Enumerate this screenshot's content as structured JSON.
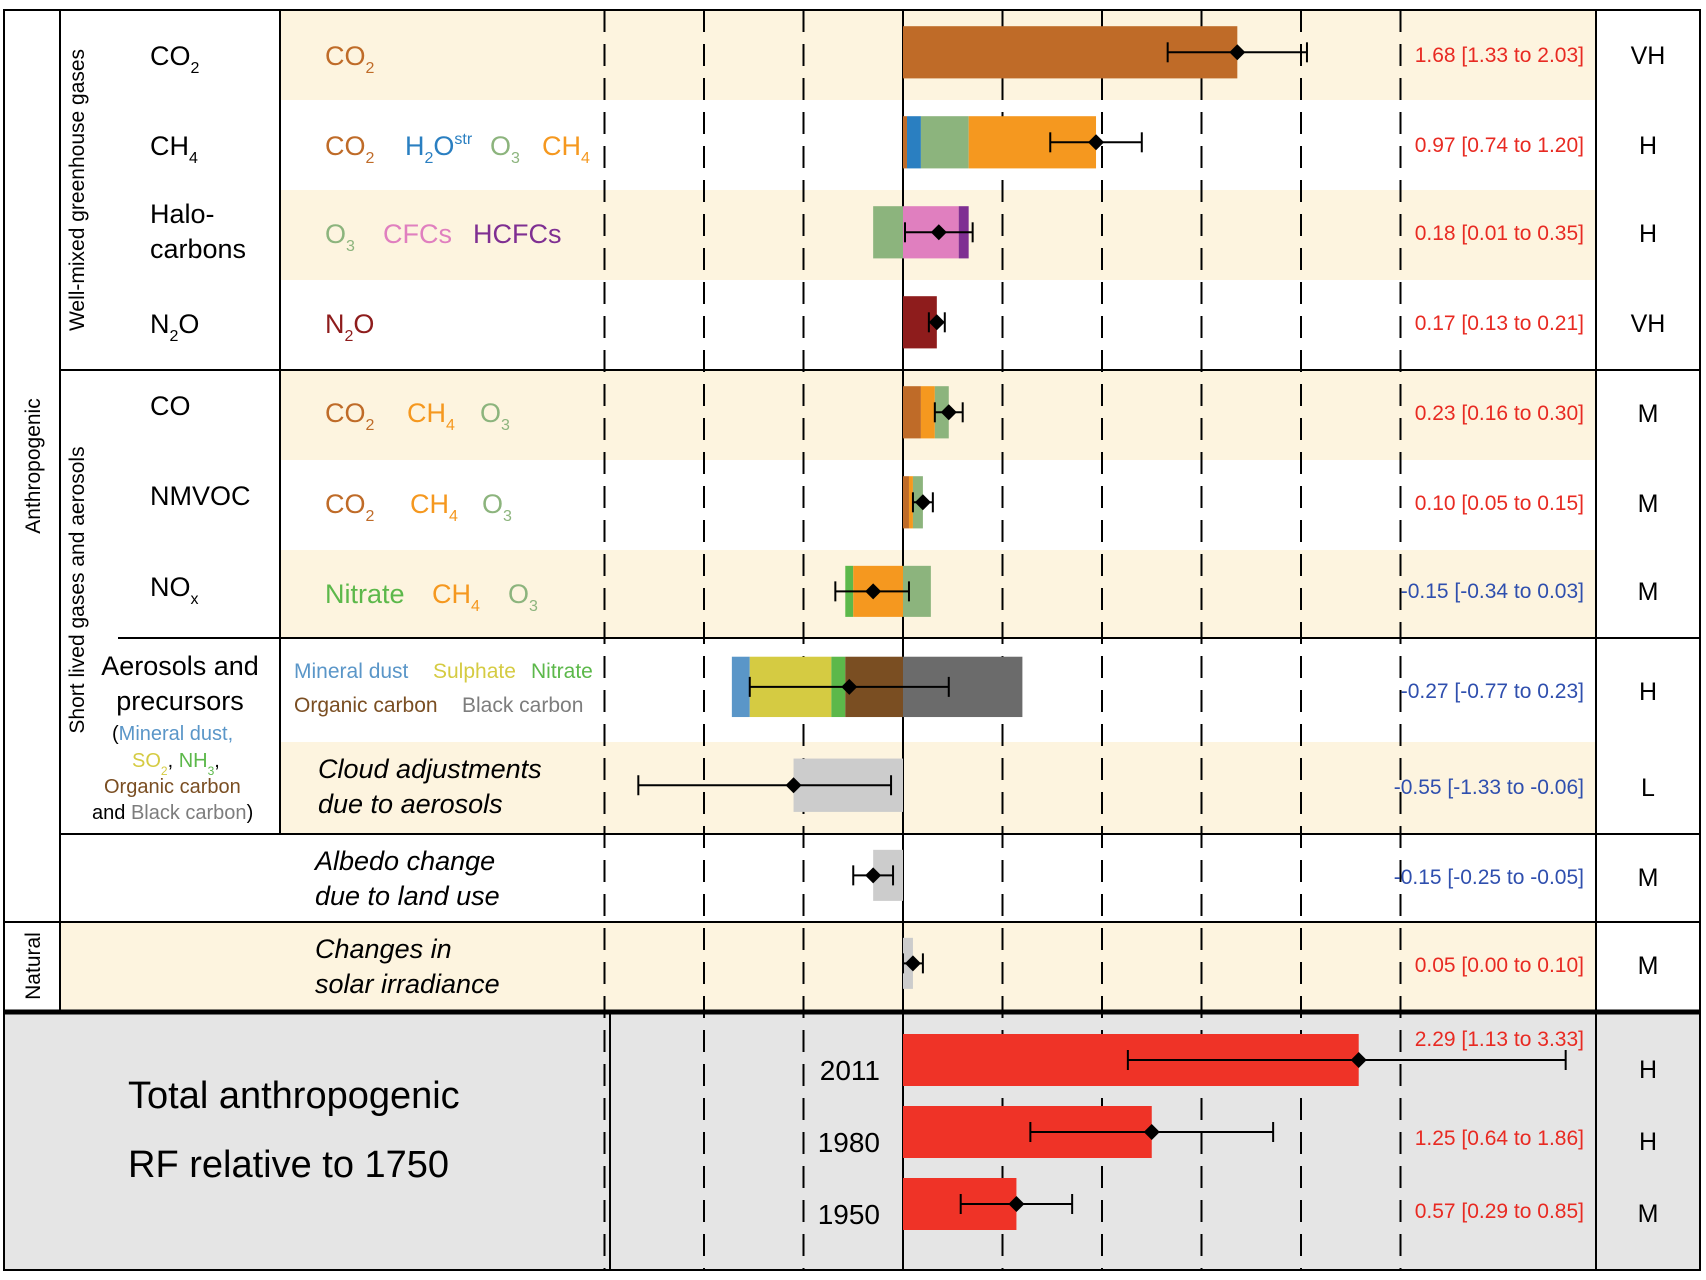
{
  "chart_data": {
    "type": "bar",
    "orientation": "horizontal",
    "xlim": [
      -1.5,
      2.75
    ],
    "grid": "dashed vertical lines every 0.5",
    "colors": {
      "CO2": "#bf6b28",
      "H2Ostr": "#2a7fc1",
      "O3": "#8cb47d",
      "CH4": "#f5981f",
      "CFCs": "#e07fbf",
      "HCFCs": "#7f2f92",
      "N2O": "#8e1c1c",
      "Nitrate": "#5cb84a",
      "MineralDust": "#5a96c8",
      "Sulphate": "#d5cb42",
      "OrganicCarbon": "#7a4e22",
      "BlackCarbon": "#6b6b6b",
      "Adjustment": "#cccccc",
      "Total": "#ef3327",
      "rowShade": "#fdf4df",
      "totalShade": "#e5e5e5",
      "positive": "#e82a22",
      "negative": "#2f4fae"
    },
    "groups": [
      {
        "label": "Anthropogenic"
      },
      {
        "label": "Well-mixed greenhouse gases"
      },
      {
        "label": "Short lived gases and aerosols"
      },
      {
        "label": "Natural"
      }
    ],
    "rows": [
      {
        "emitted": [
          "CO",
          "2"
        ],
        "value": 1.68,
        "lo": 1.33,
        "hi": 2.03,
        "value_text": "1.68 [1.33 to 2.03]",
        "confidence": "VH",
        "components": [
          {
            "name": "CO₂",
            "key": "CO2",
            "sub": "2",
            "base": "CO",
            "from": 0,
            "to": 1.68
          }
        ]
      },
      {
        "emitted": [
          "CH",
          "4"
        ],
        "value": 0.97,
        "lo": 0.74,
        "hi": 1.2,
        "value_text": "0.97 [0.74 to 1.20]",
        "confidence": "H",
        "components": [
          {
            "name": "CO₂",
            "key": "CO2",
            "base": "CO",
            "sub": "2",
            "from": 0,
            "to": 0.02
          },
          {
            "name": "H₂Oˢᵗʳ",
            "key": "H2Ostr",
            "base": "H",
            "sub": "2",
            "tail": "O",
            "sup": "str",
            "from": 0.02,
            "to": 0.09
          },
          {
            "name": "O₃",
            "key": "O3",
            "base": "O",
            "sub": "3",
            "from": 0.09,
            "to": 0.33
          },
          {
            "name": "CH₄",
            "key": "CH4",
            "base": "CH",
            "sub": "4",
            "from": 0.33,
            "to": 0.97
          }
        ]
      },
      {
        "emitted": [
          "Halo-",
          "carbons"
        ],
        "value": 0.18,
        "lo": 0.01,
        "hi": 0.35,
        "value_text": "0.18 [0.01 to 0.35]",
        "confidence": "H",
        "components": [
          {
            "name": "O₃",
            "key": "O3",
            "base": "O",
            "sub": "3",
            "from": -0.15,
            "to": 0
          },
          {
            "name": "CFCs",
            "key": "CFCs",
            "base": "CFCs",
            "from": 0,
            "to": 0.28
          },
          {
            "name": "HCFCs",
            "key": "HCFCs",
            "base": "HCFCs",
            "from": 0.28,
            "to": 0.33
          }
        ]
      },
      {
        "emitted": [
          "N",
          "2",
          "O"
        ],
        "value": 0.17,
        "lo": 0.13,
        "hi": 0.21,
        "value_text": "0.17 [0.13 to 0.21]",
        "confidence": "VH",
        "components": [
          {
            "name": "N₂O",
            "key": "N2O",
            "base": "N",
            "sub": "2",
            "tail": "O",
            "from": 0,
            "to": 0.17
          }
        ]
      },
      {
        "emitted": [
          "CO"
        ],
        "value": 0.23,
        "lo": 0.16,
        "hi": 0.3,
        "value_text": "0.23 [0.16 to 0.30]",
        "confidence": "M",
        "components": [
          {
            "name": "CO₂",
            "key": "CO2",
            "base": "CO",
            "sub": "2",
            "from": 0,
            "to": 0.09
          },
          {
            "name": "CH₄",
            "key": "CH4",
            "base": "CH",
            "sub": "4",
            "from": 0.09,
            "to": 0.16
          },
          {
            "name": "O₃",
            "key": "O3",
            "base": "O",
            "sub": "3",
            "from": 0.16,
            "to": 0.23
          }
        ]
      },
      {
        "emitted": [
          "NMVOC"
        ],
        "value": 0.1,
        "lo": 0.05,
        "hi": 0.15,
        "value_text": "0.10 [0.05 to 0.15]",
        "confidence": "M",
        "components": [
          {
            "name": "CO₂",
            "key": "CO2",
            "base": "CO",
            "sub": "2",
            "from": 0,
            "to": 0.03
          },
          {
            "name": "CH₄",
            "key": "CH4",
            "base": "CH",
            "sub": "4",
            "from": 0.03,
            "to": 0.05
          },
          {
            "name": "O₃",
            "key": "O3",
            "base": "O",
            "sub": "3",
            "from": 0.05,
            "to": 0.1
          }
        ]
      },
      {
        "emitted": [
          "NO",
          "x"
        ],
        "value": -0.15,
        "lo": -0.34,
        "hi": 0.03,
        "value_text": "-0.15 [-0.34 to 0.03]",
        "confidence": "M",
        "components": [
          {
            "name": "Nitrate",
            "key": "Nitrate",
            "base": "Nitrate",
            "from": -0.29,
            "to": -0.25
          },
          {
            "name": "CH₄",
            "key": "CH4",
            "base": "CH",
            "sub": "4",
            "from": -0.25,
            "to": 0
          },
          {
            "name": "O₃",
            "key": "O3",
            "base": "O",
            "sub": "3",
            "from": 0,
            "to": 0.14
          }
        ]
      },
      {
        "emitted": [
          "Aerosols and",
          "precursors"
        ],
        "value": -0.27,
        "lo": -0.77,
        "hi": 0.23,
        "value_text": "-0.27 [-0.77 to 0.23]",
        "confidence": "H",
        "components": [
          {
            "name": "Mineral dust",
            "key": "MineralDust",
            "from": -0.86,
            "to": -0.77
          },
          {
            "name": "Sulphate",
            "key": "Sulphate",
            "from": -0.77,
            "to": -0.36
          },
          {
            "name": "Nitrate",
            "key": "Nitrate",
            "from": -0.36,
            "to": -0.29
          },
          {
            "name": "Organic carbon",
            "key": "OrganicCarbon",
            "from": -0.29,
            "to": 0
          },
          {
            "name": "Black carbon",
            "key": "BlackCarbon",
            "from": 0,
            "to": 0.6
          }
        ]
      },
      {
        "emitted": [],
        "label": [
          "Cloud adjustments",
          "due to aerosols"
        ],
        "value": -0.55,
        "lo": -1.33,
        "hi": -0.06,
        "value_text": "-0.55 [-1.33 to -0.06]",
        "confidence": "L",
        "components": [
          {
            "name": "Cloud adjustments due to aerosols",
            "key": "Adjustment",
            "from": -0.55,
            "to": 0
          }
        ]
      },
      {
        "emitted": [],
        "label": [
          "Albedo change",
          "due to land use"
        ],
        "value": -0.15,
        "lo": -0.25,
        "hi": -0.05,
        "value_text": "-0.15 [-0.25 to -0.05]",
        "confidence": "M",
        "components": [
          {
            "name": "Albedo change due to land use",
            "key": "Adjustment",
            "from": -0.15,
            "to": 0
          }
        ]
      },
      {
        "emitted": [],
        "label": [
          "Changes in",
          "solar irradiance"
        ],
        "value": 0.05,
        "lo": 0.0,
        "hi": 0.1,
        "value_text": "0.05 [0.00 to 0.10]",
        "confidence": "M",
        "components": [
          {
            "name": "Changes in solar irradiance",
            "key": "Adjustment",
            "from": 0,
            "to": 0.05
          }
        ]
      }
    ],
    "aerosol_precursors": {
      "open": "(",
      "items": [
        "Mineral dust",
        "SO₂",
        "NH₃",
        "Organic carbon",
        "Black carbon"
      ],
      "and": "and",
      "close": ")"
    },
    "legend_text": {
      "mineral_dust": "Mineral dust",
      "sulphate": "Sulphate",
      "nitrate": "Nitrate",
      "organic_carbon": "Organic carbon",
      "black_carbon": "Black carbon"
    },
    "totals": {
      "title": [
        "Total anthropogenic",
        "RF relative to 1750"
      ],
      "series": [
        {
          "year": "2011",
          "value": 2.29,
          "lo": 1.13,
          "hi": 3.33,
          "value_text": "2.29 [1.13 to 3.33]",
          "confidence": "H"
        },
        {
          "year": "1980",
          "value": 1.25,
          "lo": 0.64,
          "hi": 1.86,
          "value_text": "1.25 [0.64 to 1.86]",
          "confidence": "H"
        },
        {
          "year": "1950",
          "value": 0.57,
          "lo": 0.29,
          "hi": 0.85,
          "value_text": "0.57 [0.29 to 0.85]",
          "confidence": "M"
        }
      ]
    }
  }
}
